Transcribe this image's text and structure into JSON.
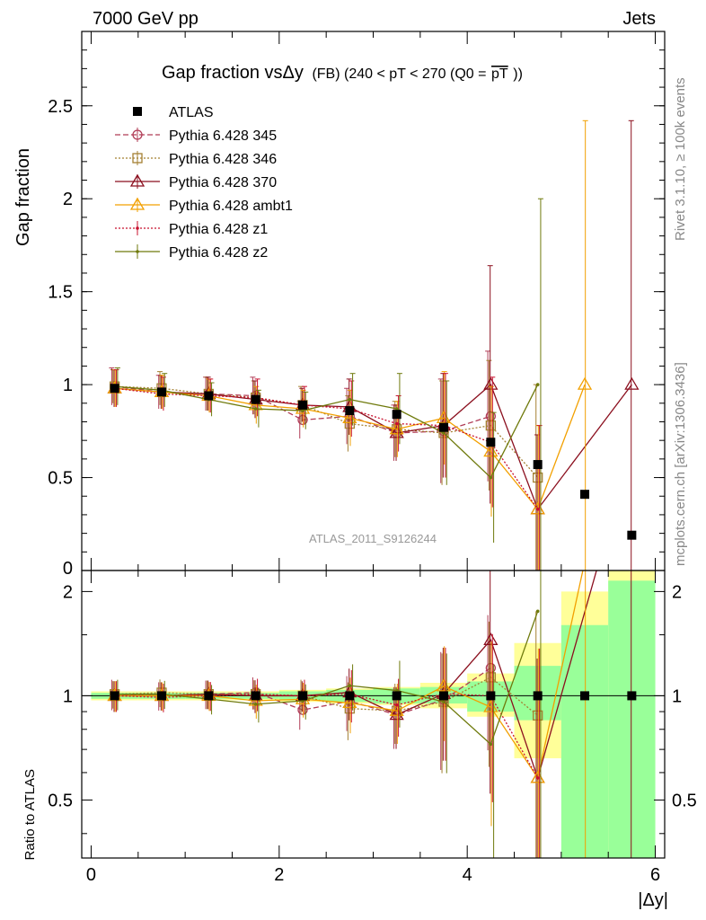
{
  "header": {
    "left": "7000 GeV pp",
    "right": "Jets",
    "title_main": "Gap fraction vsΔy",
    "title_tail": "(FB) (240 < pT < 270 (Q0 =",
    "title_pt": "pT",
    "title_close": "))",
    "analysis_id": "ATLAS_2011_S9126244",
    "side_rivet": "Rivet 3.1.10, ≥ 100k events",
    "side_mcplots": "mcplots.cern.ch [arXiv:1306.3436]"
  },
  "chart_data": [
    {
      "type": "line",
      "panel": "main",
      "ylabel": "Gap fraction",
      "xlim": [
        -0.1,
        6.1
      ],
      "ylim": [
        0,
        2.9
      ],
      "yticks": [
        0.5,
        1,
        1.5,
        2,
        2.5
      ],
      "ytick_labels": [
        "0.5",
        "1",
        "1.5",
        "2",
        "2.5"
      ],
      "bottom_label": "0",
      "x": [
        0.25,
        0.75,
        1.25,
        1.75,
        2.25,
        2.75,
        3.25,
        3.75,
        4.25,
        4.75,
        5.25,
        5.75
      ],
      "data": {
        "name": "ATLAS",
        "values": [
          0.98,
          0.96,
          0.94,
          0.92,
          0.89,
          0.86,
          0.84,
          0.77,
          0.69,
          0.57,
          0.41,
          0.19
        ]
      },
      "series": [
        {
          "name": "Pythia 6.428 345",
          "color": "#b03c56",
          "style": "dashed",
          "marker": "circle",
          "values": [
            0.99,
            0.96,
            0.95,
            0.94,
            0.81,
            0.83,
            0.74,
            0.75,
            0.83,
            null,
            null,
            null
          ],
          "err": [
            0.1,
            0.09,
            0.09,
            0.1,
            0.1,
            0.15,
            0.15,
            0.28,
            0.35,
            null,
            null,
            null
          ]
        },
        {
          "name": "Pythia 6.428 346",
          "color": "#a48032",
          "style": "dotted",
          "marker": "square",
          "values": [
            0.99,
            0.98,
            0.95,
            0.93,
            0.89,
            0.79,
            0.76,
            0.74,
            0.78,
            0.5,
            null,
            null
          ],
          "err": [
            0.09,
            0.09,
            0.09,
            0.09,
            0.1,
            0.15,
            0.15,
            0.28,
            0.35,
            0.5,
            null,
            null
          ]
        },
        {
          "name": "Pythia 6.428 370",
          "color": "#8b0f1e",
          "style": "solid",
          "marker": "triangle",
          "values": [
            0.98,
            0.96,
            0.95,
            0.92,
            0.89,
            0.88,
            0.74,
            0.78,
            1.0,
            0.33,
            null,
            1.0
          ],
          "err": [
            0.1,
            0.09,
            0.09,
            0.1,
            0.09,
            0.15,
            0.15,
            0.28,
            0.64,
            0.4,
            null,
            1.42
          ]
        },
        {
          "name": "Pythia 6.428 ambt1",
          "color": "#f2a000",
          "style": "solid",
          "marker": "triangle",
          "values": [
            0.98,
            0.96,
            0.94,
            0.89,
            0.87,
            0.82,
            0.76,
            0.82,
            0.64,
            0.33,
            1.0,
            null
          ],
          "err": [
            0.1,
            0.09,
            0.09,
            0.1,
            0.1,
            0.15,
            0.15,
            0.25,
            0.35,
            0.45,
            1.42,
            null
          ]
        },
        {
          "name": "Pythia 6.428 z1",
          "color": "#c8102e",
          "style": "dotted",
          "marker": "dot",
          "values": [
            0.98,
            0.95,
            0.94,
            0.93,
            0.89,
            0.87,
            0.79,
            0.78,
            0.69,
            0.33,
            null,
            null
          ],
          "err": [
            0.1,
            0.09,
            0.09,
            0.1,
            0.1,
            0.15,
            0.15,
            0.28,
            0.35,
            0.45,
            null,
            null
          ]
        },
        {
          "name": "Pythia 6.428 z2",
          "color": "#6f7a0c",
          "style": "solid",
          "marker": "dot",
          "values": [
            0.99,
            0.97,
            0.92,
            0.87,
            0.86,
            0.92,
            0.87,
            0.74,
            0.5,
            1.0,
            null,
            null
          ],
          "err": [
            0.1,
            0.09,
            0.09,
            0.1,
            0.1,
            0.14,
            0.19,
            0.28,
            0.35,
            1.0,
            null,
            null
          ]
        }
      ]
    },
    {
      "type": "line",
      "panel": "ratio",
      "ylabel": "Ratio to ATLAS",
      "xlabel": "|Δy|",
      "xlim": [
        -0.1,
        6.1
      ],
      "ylim": [
        0.34,
        2.3
      ],
      "log_y": true,
      "xticks": [
        0,
        2,
        4,
        6
      ],
      "xtick_labels": [
        "0",
        "2",
        "4",
        "6"
      ],
      "yticks": [
        0.5,
        1,
        2
      ],
      "ytick_labels": [
        "0.5",
        "1",
        "2"
      ],
      "band_green": [
        [
          0.98,
          1.02
        ],
        [
          0.98,
          1.02
        ],
        [
          0.98,
          1.02
        ],
        [
          0.98,
          1.02
        ],
        [
          0.97,
          1.03
        ],
        [
          0.96,
          1.04
        ],
        [
          0.95,
          1.05
        ],
        [
          0.95,
          1.06
        ],
        [
          0.9,
          1.1
        ],
        [
          0.85,
          1.22
        ],
        [
          0.34,
          1.6
        ],
        [
          0.34,
          2.15
        ]
      ],
      "band_yellow": [
        [
          0.97,
          1.03
        ],
        [
          0.97,
          1.03
        ],
        [
          0.97,
          1.03
        ],
        [
          0.97,
          1.03
        ],
        [
          0.96,
          1.04
        ],
        [
          0.95,
          1.05
        ],
        [
          0.94,
          1.06
        ],
        [
          0.92,
          1.09
        ],
        [
          0.87,
          1.16
        ],
        [
          0.66,
          1.42
        ],
        [
          0.56,
          2.0
        ],
        [
          0.34,
          2.3
        ]
      ]
    }
  ]
}
